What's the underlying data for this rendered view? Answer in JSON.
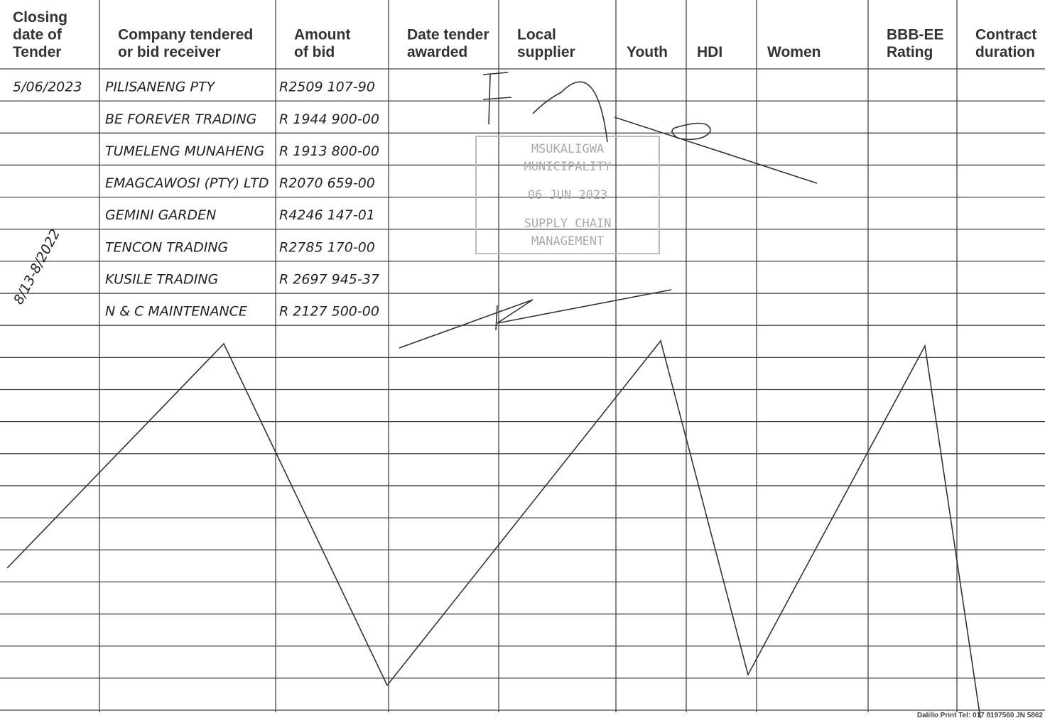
{
  "header": {
    "columns": [
      [
        "Closing",
        "date of",
        "Tender"
      ],
      [
        "Company tendered",
        "or bid receiver"
      ],
      [
        "Amount",
        "of bid"
      ],
      [
        "Date tender",
        "awarded"
      ],
      [
        "Local",
        "supplier"
      ],
      [
        "Youth"
      ],
      [
        "HDI"
      ],
      [
        "Women"
      ],
      [
        "BBB-EE",
        "Rating"
      ],
      [
        "Contract",
        "duration"
      ]
    ]
  },
  "table": {
    "closing_date": "5/06/2023",
    "rows": [
      [
        "PILISANENG PTY",
        "R2509 107-90"
      ],
      [
        "BE FOREVER TRADING",
        "R 1944 900-00"
      ],
      [
        "TUMELENG MUNAHENG",
        "R 1913 800-00"
      ],
      [
        "EMAGCAWOSI (PTY) LTD",
        "R2070 659-00"
      ],
      [
        "GEMINI GARDEN",
        "R4246 147-01"
      ],
      [
        "TENCON TRADING",
        "R2785 170-00"
      ],
      [
        "KUSILE TRADING",
        "R 2697 945-37"
      ],
      [
        "N & C MAINTENANCE",
        "R 2127 500-00"
      ]
    ]
  },
  "annotation": "8/13-8/2022",
  "stamp": {
    "lines": [
      "MSUKALIGWA",
      "MUNICIPALITY",
      "06 JUN 2023",
      "SUPPLY CHAIN",
      "MANAGEMENT"
    ]
  },
  "footer": "Dalillo Print Tel: 017 8197560 JN 5862"
}
